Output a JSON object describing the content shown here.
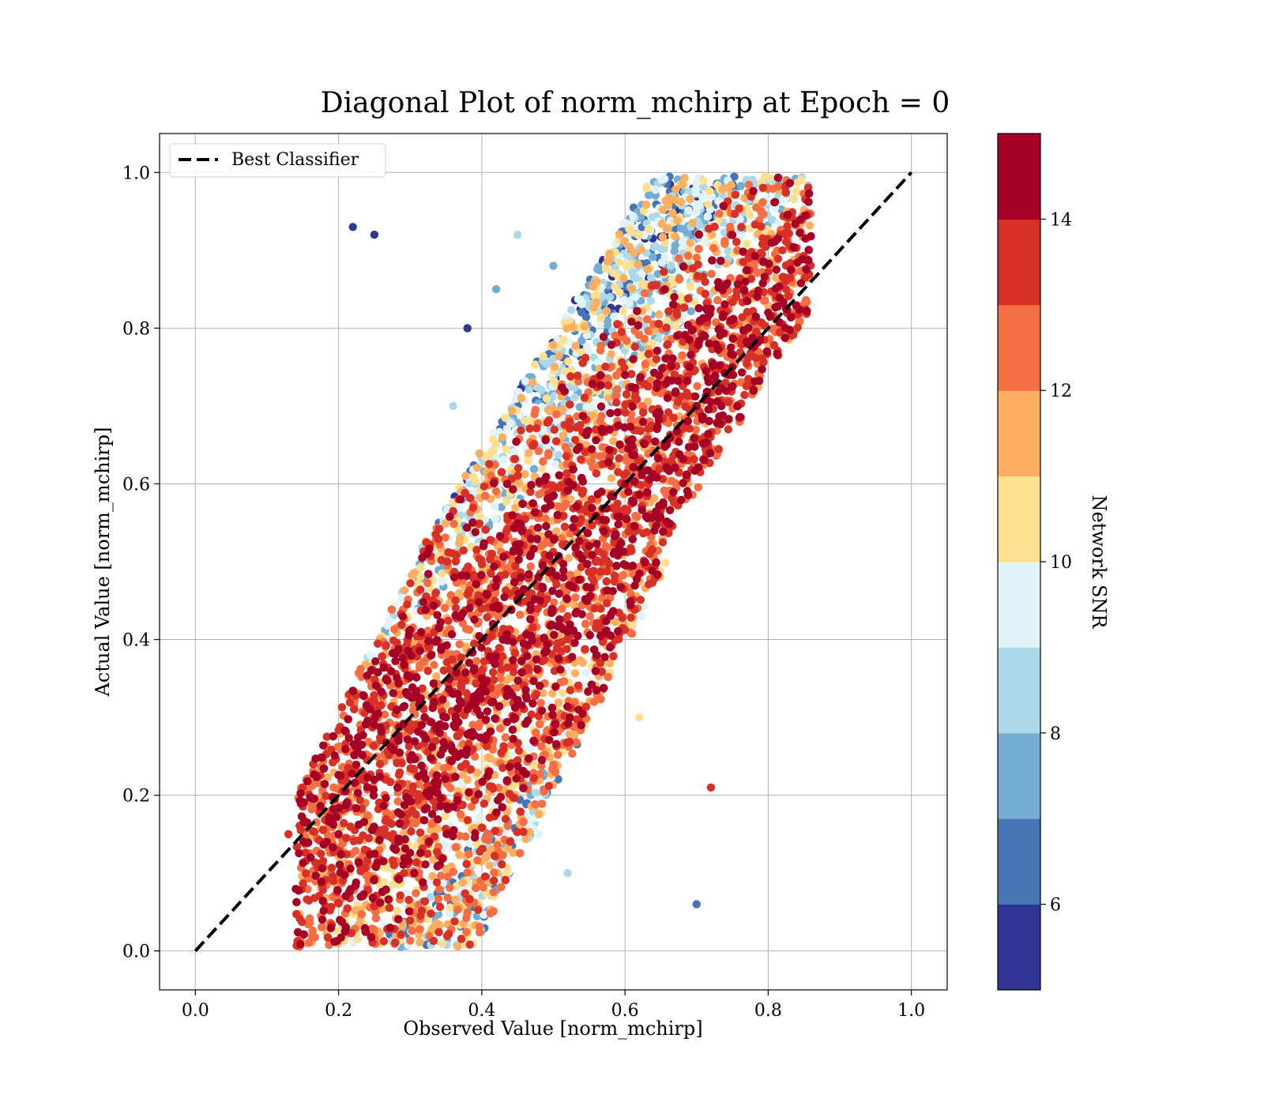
{
  "chart_data": {
    "type": "scatter",
    "title": "Diagonal Plot of norm_mchirp at Epoch = 0",
    "xlabel": "Observed Value [norm_mchirp]",
    "ylabel": "Actual Value [norm_mchirp]",
    "xlim": [
      -0.05,
      1.05
    ],
    "ylim": [
      -0.05,
      1.05
    ],
    "xticks": [
      0.0,
      0.2,
      0.4,
      0.6,
      0.8,
      1.0
    ],
    "yticks": [
      0.0,
      0.2,
      0.4,
      0.6,
      0.8,
      1.0
    ],
    "xtick_labels": [
      "0.0",
      "0.2",
      "0.4",
      "0.6",
      "0.8",
      "1.0"
    ],
    "ytick_labels": [
      "0.0",
      "0.2",
      "0.4",
      "0.6",
      "0.8",
      "1.0"
    ],
    "grid": true,
    "legend": {
      "placement": "top-left",
      "entries": [
        "Best Classifier"
      ]
    },
    "reference_line": {
      "name": "Best Classifier",
      "style": "dashed",
      "color": "#000000",
      "x": [
        0.0,
        1.0
      ],
      "y": [
        0.0,
        1.0
      ]
    },
    "colorbar": {
      "label": "Network SNR",
      "range": [
        5,
        15
      ],
      "ticks": [
        6,
        8,
        10,
        12,
        14
      ],
      "tick_labels": [
        "6",
        "8",
        "10",
        "12",
        "14"
      ],
      "colors": [
        "#313695",
        "#4575b4",
        "#74add1",
        "#abd9e9",
        "#e0f3f8",
        "#fee090",
        "#fdae61",
        "#f46d43",
        "#d73027",
        "#a50026"
      ]
    },
    "point_color_field": "snr",
    "samples": [
      {
        "x": 0.2,
        "y": 0.15,
        "snr": 14.5
      },
      {
        "x": 0.25,
        "y": 0.22,
        "snr": 14.5
      },
      {
        "x": 0.3,
        "y": 0.25,
        "snr": 13.5
      },
      {
        "x": 0.35,
        "y": 0.3,
        "snr": 14.5
      },
      {
        "x": 0.4,
        "y": 0.35,
        "snr": 14.5
      },
      {
        "x": 0.45,
        "y": 0.45,
        "snr": 14.5
      },
      {
        "x": 0.5,
        "y": 0.48,
        "snr": 13.5
      },
      {
        "x": 0.55,
        "y": 0.52,
        "snr": 14.5
      },
      {
        "x": 0.6,
        "y": 0.6,
        "snr": 14.5
      },
      {
        "x": 0.65,
        "y": 0.62,
        "snr": 12.5
      },
      {
        "x": 0.7,
        "y": 0.7,
        "snr": 14.5
      },
      {
        "x": 0.75,
        "y": 0.75,
        "snr": 14.5
      },
      {
        "x": 0.8,
        "y": 0.82,
        "snr": 14.5
      },
      {
        "x": 0.82,
        "y": 0.9,
        "snr": 13.5
      },
      {
        "x": 0.42,
        "y": 0.85,
        "snr": 7.5
      },
      {
        "x": 0.38,
        "y": 0.8,
        "snr": 5.5
      },
      {
        "x": 0.45,
        "y": 0.92,
        "snr": 8.5
      },
      {
        "x": 0.5,
        "y": 0.88,
        "snr": 7.5
      },
      {
        "x": 0.36,
        "y": 0.7,
        "snr": 8.5
      },
      {
        "x": 0.34,
        "y": 0.55,
        "snr": 6.5
      },
      {
        "x": 0.48,
        "y": 0.15,
        "snr": 9.5
      },
      {
        "x": 0.52,
        "y": 0.1,
        "snr": 8.5
      },
      {
        "x": 0.38,
        "y": 0.05,
        "snr": 12.5
      },
      {
        "x": 0.62,
        "y": 0.3,
        "snr": 10.5
      },
      {
        "x": 0.22,
        "y": 0.93,
        "snr": 5.5
      },
      {
        "x": 0.25,
        "y": 0.92,
        "snr": 5.5
      },
      {
        "x": 0.7,
        "y": 0.06,
        "snr": 6.5
      },
      {
        "x": 0.72,
        "y": 0.21,
        "snr": 13.5
      },
      {
        "x": 0.15,
        "y": 0.21,
        "snr": 13.5
      },
      {
        "x": 0.13,
        "y": 0.15,
        "snr": 13.5
      }
    ]
  }
}
